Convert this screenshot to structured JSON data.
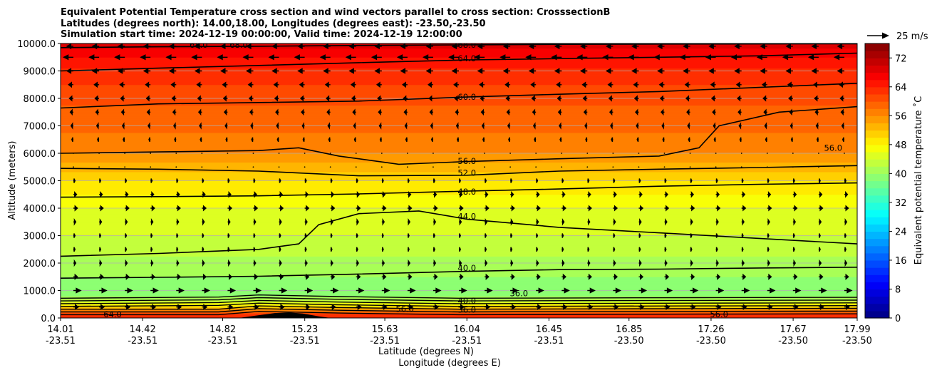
{
  "chart_data": {
    "type": "contourf",
    "title_lines": [
      "Equivalent Potential Temperature cross section and wind vectors parallel to cross section: CrosssectionB",
      "Latitudes (degrees north): 14.00,18.00, Longitudes (degrees east): -23.50,-23.50",
      "Simulation start time: 2024-12-19 00:00:00, Valid time: 2024-12-19 12:00:00"
    ],
    "ylabel": "Altitude (meters)",
    "xlabel_lines": [
      "Latitude (degrees N)",
      "Longitude (degrees E)"
    ],
    "ylim": [
      0,
      10000
    ],
    "yticks": [
      "0.0",
      "1000.0",
      "2000.0",
      "3000.0",
      "4000.0",
      "5000.0",
      "6000.0",
      "7000.0",
      "8000.0",
      "9000.0",
      "10000.0"
    ],
    "xlim": [
      14.01,
      17.99
    ],
    "xticks": [
      {
        "lat": "14.01",
        "lon": "-23.51"
      },
      {
        "lat": "14.42",
        "lon": "-23.51"
      },
      {
        "lat": "14.82",
        "lon": "-23.51"
      },
      {
        "lat": "15.23",
        "lon": "-23.51"
      },
      {
        "lat": "15.63",
        "lon": "-23.51"
      },
      {
        "lat": "16.04",
        "lon": "-23.51"
      },
      {
        "lat": "16.45",
        "lon": "-23.51"
      },
      {
        "lat": "16.85",
        "lon": "-23.50"
      },
      {
        "lat": "17.26",
        "lon": "-23.50"
      },
      {
        "lat": "17.67",
        "lon": "-23.50"
      },
      {
        "lat": "17.99",
        "lon": "-23.50"
      }
    ],
    "grid": "horizontal",
    "colorbar": {
      "label": "Equivalent potential temperature $^\\circ$C",
      "label_display": "Equivalent potential temperature ˚C",
      "min": 0,
      "max": 76,
      "step": 2,
      "ticks": [
        "0",
        "8",
        "16",
        "24",
        "32",
        "40",
        "48",
        "56",
        "64",
        "72"
      ],
      "colormap": "jet"
    },
    "quiver_key": {
      "label": "25 m/s",
      "speed": 25
    },
    "theta_e_profile": [
      {
        "z": 0,
        "v": 63
      },
      {
        "z": 150,
        "v": 62
      },
      {
        "z": 300,
        "v": 56
      },
      {
        "z": 450,
        "v": 49
      },
      {
        "z": 700,
        "v": 41
      },
      {
        "z": 1000,
        "v": 38
      },
      {
        "z": 1500,
        "v": 40
      },
      {
        "z": 2000,
        "v": 41.5
      },
      {
        "z": 2500,
        "v": 42.5
      },
      {
        "z": 3000,
        "v": 44
      },
      {
        "z": 3500,
        "v": 45
      },
      {
        "z": 4000,
        "v": 46
      },
      {
        "z": 4500,
        "v": 48
      },
      {
        "z": 5000,
        "v": 50
      },
      {
        "z": 5500,
        "v": 53
      },
      {
        "z": 6000,
        "v": 56
      },
      {
        "z": 6500,
        "v": 57.5
      },
      {
        "z": 7000,
        "v": 58.5
      },
      {
        "z": 7500,
        "v": 59.5
      },
      {
        "z": 8000,
        "v": 60.5
      },
      {
        "z": 8500,
        "v": 62
      },
      {
        "z": 9000,
        "v": 63.5
      },
      {
        "z": 9500,
        "v": 66
      },
      {
        "z": 10000,
        "v": 69
      }
    ],
    "contours": [
      {
        "level": "40.0",
        "points": [
          [
            14.01,
            1450
          ],
          [
            14.5,
            1480
          ],
          [
            15.0,
            1520
          ],
          [
            15.5,
            1600
          ],
          [
            16.04,
            1700
          ],
          [
            16.5,
            1760
          ],
          [
            17.0,
            1780
          ],
          [
            17.5,
            1820
          ],
          [
            17.99,
            1850
          ]
        ]
      },
      {
        "level": "44.0",
        "points": [
          [
            14.01,
            2250
          ],
          [
            14.5,
            2350
          ],
          [
            15.0,
            2500
          ],
          [
            15.2,
            2700
          ],
          [
            15.3,
            3400
          ],
          [
            15.5,
            3800
          ],
          [
            15.8,
            3900
          ],
          [
            16.04,
            3600
          ],
          [
            16.5,
            3300
          ],
          [
            17.0,
            3100
          ],
          [
            17.5,
            2900
          ],
          [
            17.99,
            2700
          ]
        ]
      },
      {
        "level": "48.0",
        "points": [
          [
            14.01,
            4400
          ],
          [
            14.5,
            4420
          ],
          [
            15.0,
            4450
          ],
          [
            15.5,
            4520
          ],
          [
            16.04,
            4620
          ],
          [
            16.5,
            4700
          ],
          [
            17.0,
            4800
          ],
          [
            17.5,
            4870
          ],
          [
            17.99,
            4920
          ]
        ]
      },
      {
        "level": "52.0",
        "points": [
          [
            14.01,
            5450
          ],
          [
            14.5,
            5420
          ],
          [
            15.0,
            5350
          ],
          [
            15.5,
            5180
          ],
          [
            16.04,
            5200
          ],
          [
            16.5,
            5350
          ],
          [
            17.0,
            5420
          ],
          [
            17.5,
            5480
          ],
          [
            17.99,
            5550
          ]
        ]
      },
      {
        "level": "56.0",
        "points": [
          [
            14.01,
            6000
          ],
          [
            14.5,
            6050
          ],
          [
            15.0,
            6100
          ],
          [
            15.2,
            6200
          ],
          [
            15.4,
            5900
          ],
          [
            15.7,
            5600
          ],
          [
            16.04,
            5700
          ],
          [
            16.5,
            5800
          ],
          [
            17.0,
            5900
          ],
          [
            17.2,
            6200
          ],
          [
            17.3,
            7000
          ],
          [
            17.6,
            7500
          ],
          [
            17.99,
            7700
          ]
        ]
      },
      {
        "level": "60.0",
        "points": [
          [
            14.01,
            7650
          ],
          [
            14.5,
            7800
          ],
          [
            15.0,
            7850
          ],
          [
            15.5,
            7900
          ],
          [
            16.04,
            8050
          ],
          [
            16.5,
            8150
          ],
          [
            17.0,
            8250
          ],
          [
            17.5,
            8400
          ],
          [
            17.99,
            8550
          ]
        ]
      },
      {
        "level": "64.0",
        "points": [
          [
            14.01,
            9000
          ],
          [
            14.5,
            9100
          ],
          [
            15.0,
            9200
          ],
          [
            15.5,
            9300
          ],
          [
            16.04,
            9400
          ],
          [
            16.5,
            9450
          ],
          [
            17.0,
            9500
          ],
          [
            17.5,
            9550
          ],
          [
            17.99,
            9650
          ]
        ]
      },
      {
        "level": "68.0",
        "points": [
          [
            14.01,
            9850
          ],
          [
            14.5,
            9880
          ],
          [
            15.0,
            9900
          ],
          [
            15.5,
            9930
          ],
          [
            16.04,
            9950
          ],
          [
            16.5,
            9970
          ],
          [
            17.0,
            9980
          ],
          [
            17.99,
            9990
          ]
        ]
      }
    ],
    "inline_labels": [
      {
        "text": "40.0",
        "lat": 16.04,
        "z": 1820
      },
      {
        "text": "44.0",
        "lat": 16.04,
        "z": 3700
      },
      {
        "text": "48.0",
        "lat": 16.04,
        "z": 4600
      },
      {
        "text": "52.0",
        "lat": 16.04,
        "z": 5280
      },
      {
        "text": "56.0",
        "lat": 16.04,
        "z": 5720
      },
      {
        "text": "60.0",
        "lat": 16.04,
        "z": 8050
      },
      {
        "text": "64.0",
        "lat": 16.04,
        "z": 9450
      },
      {
        "text": "68.0",
        "lat": 16.04,
        "z": 9950
      },
      {
        "text": "68.0",
        "lat": 14.7,
        "z": 9950
      },
      {
        "text": "68.0",
        "lat": 14.9,
        "z": 9950
      },
      {
        "text": "36.0",
        "lat": 16.3,
        "z": 900
      },
      {
        "text": "40.0",
        "lat": 16.04,
        "z": 620
      },
      {
        "text": "36.0",
        "lat": 16.04,
        "z": 300
      },
      {
        "text": "56.0",
        "lat": 15.73,
        "z": 330
      },
      {
        "text": "64.0",
        "lat": 14.27,
        "z": 130
      },
      {
        "text": "56.0",
        "lat": 17.3,
        "z": 130
      },
      {
        "text": "56.0",
        "lat": 17.87,
        "z": 6200
      }
    ],
    "wind_levels": [
      {
        "z": 400,
        "u": 6
      },
      {
        "z": 1000,
        "u": 9
      },
      {
        "z": 1500,
        "u": 5
      },
      {
        "z": 2000,
        "u": 3
      },
      {
        "z": 2500,
        "u": 2
      },
      {
        "z": 3000,
        "u": 2
      },
      {
        "z": 3500,
        "u": 3
      },
      {
        "z": 4000,
        "u": 5
      },
      {
        "z": 4500,
        "u": 4
      },
      {
        "z": 5000,
        "u": 2
      },
      {
        "z": 5500,
        "u": 0.5
      },
      {
        "z": 6000,
        "u": -1
      },
      {
        "z": 6500,
        "u": -2
      },
      {
        "z": 7000,
        "u": -3
      },
      {
        "z": 7500,
        "u": -4
      },
      {
        "z": 8000,
        "u": -5
      },
      {
        "z": 8500,
        "u": -6
      },
      {
        "z": 9000,
        "u": -8
      },
      {
        "z": 9500,
        "u": -12
      },
      {
        "z": 9900,
        "u": -8
      }
    ]
  }
}
